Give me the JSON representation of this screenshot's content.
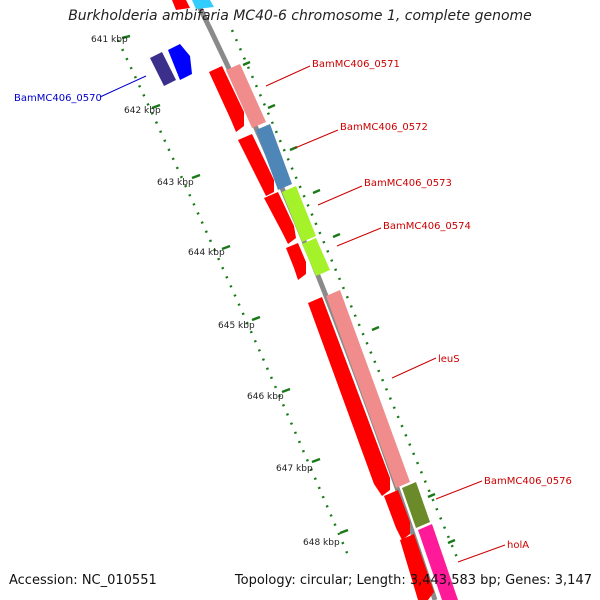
{
  "title": "Burkholderia ambifaria MC40-6 chromosome 1, complete genome",
  "footer": {
    "accession": "Accession: NC_010551",
    "summary": "Topology: circular; Length: 3,443,583 bp; Genes: 3,147"
  },
  "ticks": [
    {
      "label": "641 kbp"
    },
    {
      "label": "642 kbp"
    },
    {
      "label": "643 kbp"
    },
    {
      "label": "644 kbp"
    },
    {
      "label": "645 kbp"
    },
    {
      "label": "646 kbp"
    },
    {
      "label": "647 kbp"
    },
    {
      "label": "648 kbp"
    }
  ],
  "genes": [
    {
      "label": "BamMC406_0570",
      "color": "#0000cc"
    },
    {
      "label": "BamMC406_0571",
      "color": "#cc0000"
    },
    {
      "label": "BamMC406_0572",
      "color": "#cc0000"
    },
    {
      "label": "BamMC406_0573",
      "color": "#cc0000"
    },
    {
      "label": "BamMC406_0574",
      "color": "#cc0000"
    },
    {
      "label": "leuS",
      "color": "#cc0000"
    },
    {
      "label": "BamMC406_0576",
      "color": "#cc0000"
    },
    {
      "label": "holA",
      "color": "#cc0000"
    }
  ],
  "colors": {
    "backbone": "#8a8a8a",
    "tick": "#1a7a1a",
    "cds": "#ff0000",
    "cog_pink": "#f08c8c",
    "cog_blue": "#4f86b8",
    "cog_lime": "#a6f22a",
    "cog_olive": "#6b8a2a",
    "cog_magenta": "#ff1a9a",
    "gene_navy": "#3a2f8a",
    "gene_blue": "#0000ff",
    "top_cyan": "#33ccff"
  }
}
